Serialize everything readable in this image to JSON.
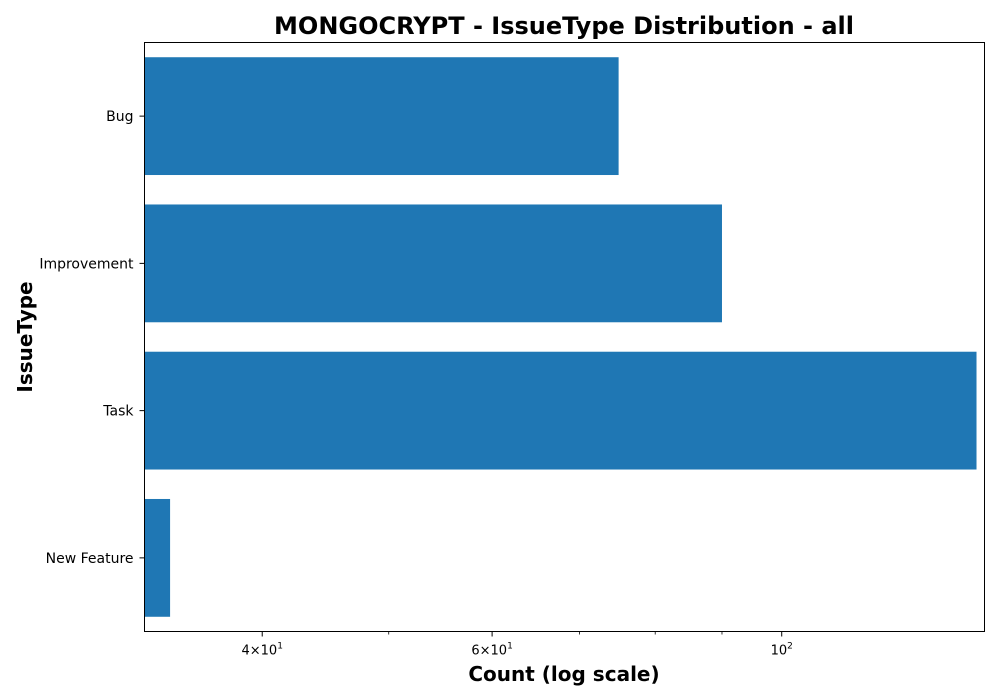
{
  "chart_data": {
    "type": "bar",
    "orientation": "horizontal",
    "title": "MONGOCRYPT - IssueType Distribution - all",
    "xlabel": "Count (log scale)",
    "ylabel": "IssueType",
    "xscale": "log",
    "xlim": [
      32.5,
      143
    ],
    "grid": false,
    "categories": [
      "Bug",
      "Improvement",
      "Task",
      "New Feature"
    ],
    "values": [
      75,
      90,
      141,
      34
    ],
    "bar_color": "#1f77b4",
    "x_ticks": [
      {
        "value": 40,
        "mantissa": "4",
        "base": "10",
        "exponent": "1"
      },
      {
        "value": 60,
        "mantissa": "6",
        "base": "10",
        "exponent": "1"
      },
      {
        "value": 100,
        "mantissa": "",
        "base": "10",
        "exponent": "2"
      }
    ],
    "x_minor_ticks": [
      50,
      70,
      80,
      90
    ]
  }
}
